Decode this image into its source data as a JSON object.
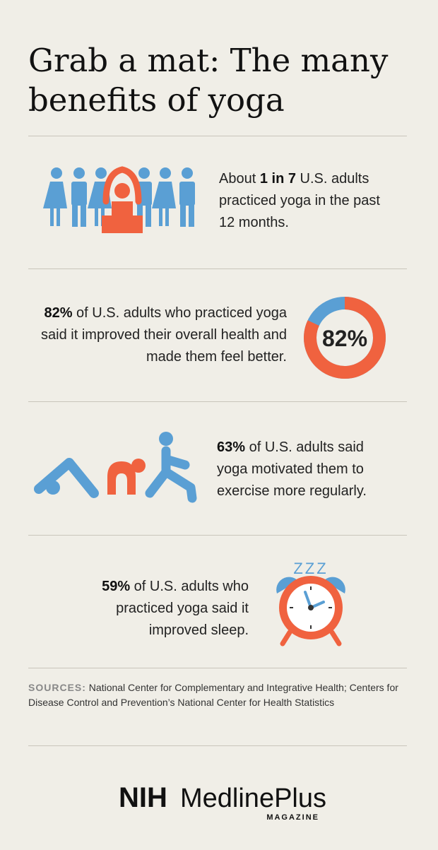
{
  "title": "Grab a mat: The many benefits of yoga",
  "sections": [
    {
      "before": "About ",
      "bold": "1 in 7",
      "after": " U.S. adults practiced yoga in the past 12 months."
    },
    {
      "bold": "82%",
      "after": " of U.S. adults who practiced yoga said it improved their overall health and made them feel better."
    },
    {
      "bold": "63%",
      "after": " of U.S. adults said yoga motivated them to exercise more regularly."
    },
    {
      "bold": "59%",
      "after": " of U.S. adults who practiced yoga said it improved sleep."
    }
  ],
  "donut": {
    "value": 82,
    "label": "82%"
  },
  "sleep_icon_text": "ZZZ",
  "sources": {
    "label": "SOURCES:",
    "text": "National Center for Complementary and Integrative Health; Centers for Disease Control and Prevention’s National Center for Health Statistics"
  },
  "logo": {
    "nih": "NIH",
    "name": "MedlinePlus",
    "sub": "MAGAZINE"
  }
}
